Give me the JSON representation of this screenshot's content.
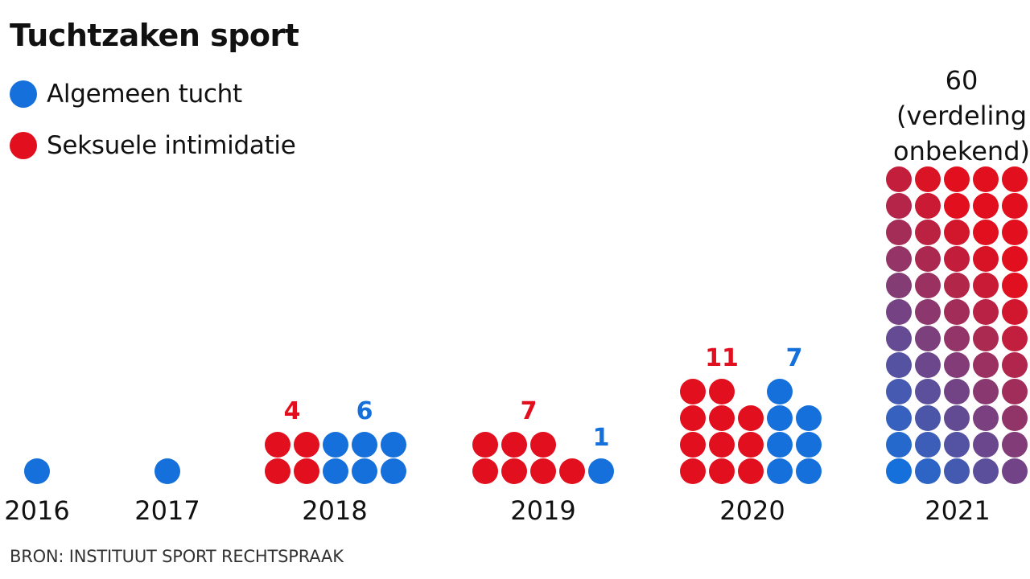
{
  "title": "Tuchtzaken sport",
  "source": "BRON: INSTITUUT SPORT RECHTSPRAAK",
  "colors": {
    "algemeen": "#1670DC",
    "seksueel": "#E20F1E",
    "text": "#111111"
  },
  "legend": [
    {
      "label": "Algemeen tucht",
      "color": "#1670DC"
    },
    {
      "label": "Seksuele intimidatie",
      "color": "#E20F1E"
    }
  ],
  "chart_data": {
    "type": "dot-matrix",
    "title": "Tuchtzaken sport",
    "unit": "one dot per case",
    "legend_placement": "top-left",
    "grid": false,
    "categories": [
      "2016",
      "2017",
      "2018",
      "2019",
      "2020",
      "2021"
    ],
    "series": [
      {
        "name": "Seksuele intimidatie",
        "color": "#E20F1E",
        "values": [
          0,
          0,
          4,
          7,
          11,
          null
        ]
      },
      {
        "name": "Algemeen tucht",
        "color": "#1670DC",
        "values": [
          1,
          1,
          6,
          1,
          7,
          null
        ]
      }
    ],
    "years": [
      {
        "year": "2016",
        "seksueel": 0,
        "algemeen": 1,
        "labels": []
      },
      {
        "year": "2017",
        "seksueel": 0,
        "algemeen": 1,
        "labels": []
      },
      {
        "year": "2018",
        "seksueel": 4,
        "algemeen": 6,
        "labels": [
          {
            "text": "4",
            "series": "seksueel"
          },
          {
            "text": "6",
            "series": "algemeen"
          }
        ]
      },
      {
        "year": "2019",
        "seksueel": 7,
        "algemeen": 1,
        "labels": [
          {
            "text": "7",
            "series": "seksueel"
          },
          {
            "text": "1",
            "series": "algemeen"
          }
        ]
      },
      {
        "year": "2020",
        "seksueel": 11,
        "algemeen": 7,
        "labels": [
          {
            "text": "11",
            "series": "seksueel"
          },
          {
            "text": "7",
            "series": "algemeen"
          }
        ]
      },
      {
        "year": "2021",
        "total": 60,
        "labels": [
          {
            "text": "60",
            "series": "total"
          },
          {
            "text": "(verdeling",
            "series": "total"
          },
          {
            "text": "onbekend)",
            "series": "total"
          }
        ]
      }
    ]
  }
}
